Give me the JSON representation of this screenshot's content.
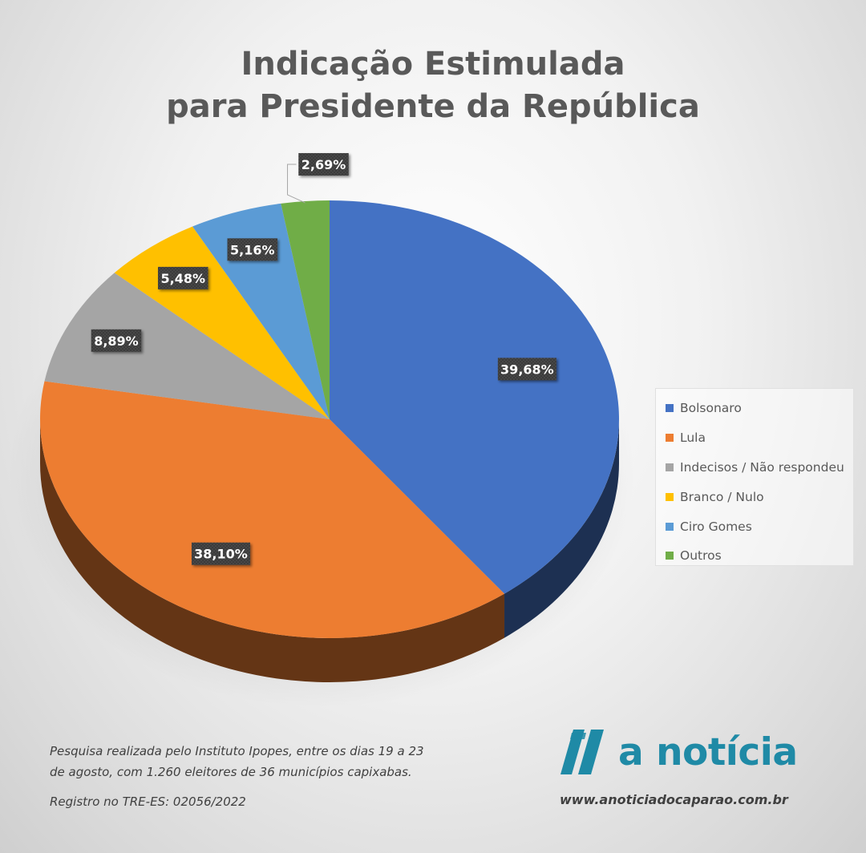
{
  "header": {
    "title_line1": "Indicação Estimulada",
    "title_line2": "para Presidente da República"
  },
  "chart_data": {
    "type": "pie",
    "title": "Indicação Estimulada para Presidente da República",
    "legend_position": "right",
    "categories": [
      "Bolsonaro",
      "Lula",
      "Indecisos / Não respondeu",
      "Branco / Nulo",
      "Ciro Gomes",
      "Outros"
    ],
    "values": [
      39.68,
      38.1,
      8.89,
      5.48,
      5.16,
      2.69
    ],
    "labels": [
      "39,68%",
      "38,10%",
      "8,89%",
      "5,48%",
      "5,16%",
      "2,69%"
    ],
    "colors": [
      "#4472c4",
      "#ed7d31",
      "#a5a5a5",
      "#ffc000",
      "#5b9bd5",
      "#70ad47"
    ]
  },
  "footer": {
    "note_line1": "Pesquisa realizada pelo Instituto Ipopes, entre os dias 19 a 23",
    "note_line2": "de agosto, com 1.260 eleitores de 36 municípios capixabas.",
    "registration": "Registro no TRE-ES: 02056/2022",
    "brand_name": "a notícia",
    "brand_color": "#1f8aa6",
    "website": "www.anoticiadocaparao.com.br"
  }
}
